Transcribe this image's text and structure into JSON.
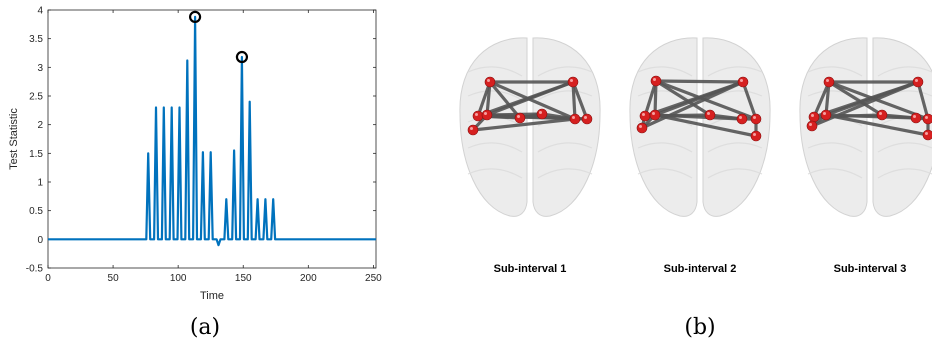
{
  "chart_data": {
    "type": "line",
    "xlabel": "Time",
    "ylabel": "Test Statistic",
    "xlim": [
      0,
      252
    ],
    "ylim": [
      -0.5,
      4
    ],
    "xticks": [
      0,
      50,
      100,
      150,
      200,
      250
    ],
    "yticks": [
      -0.5,
      0,
      0.5,
      1,
      1.5,
      2,
      2.5,
      3,
      3.5,
      4
    ],
    "color": "#0072BD",
    "spikes": [
      {
        "x": 77,
        "y": 1.5
      },
      {
        "x": 83,
        "y": 2.3
      },
      {
        "x": 89,
        "y": 2.3
      },
      {
        "x": 95,
        "y": 2.3
      },
      {
        "x": 101,
        "y": 2.3
      },
      {
        "x": 107,
        "y": 3.12
      },
      {
        "x": 113,
        "y": 3.88
      },
      {
        "x": 119,
        "y": 1.52
      },
      {
        "x": 125,
        "y": 1.52
      },
      {
        "x": 131,
        "y": -0.1
      },
      {
        "x": 137,
        "y": 0.7
      },
      {
        "x": 143,
        "y": 1.55
      },
      {
        "x": 149,
        "y": 3.18
      },
      {
        "x": 155,
        "y": 2.4
      },
      {
        "x": 161,
        "y": 0.7
      },
      {
        "x": 167,
        "y": 0.7
      },
      {
        "x": 173,
        "y": 0.7
      }
    ],
    "circled_peaks": [
      {
        "x": 113,
        "y": 3.88
      },
      {
        "x": 149,
        "y": 3.18
      }
    ]
  },
  "panel_a_label": "(a)",
  "panel_b_label": "(b)",
  "brain_views": [
    {
      "label": "Sub-interval 1"
    },
    {
      "label": "Sub-interval 2"
    },
    {
      "label": "Sub-interval 3"
    }
  ],
  "node_color": "#d62020",
  "edge_color": "#555555"
}
